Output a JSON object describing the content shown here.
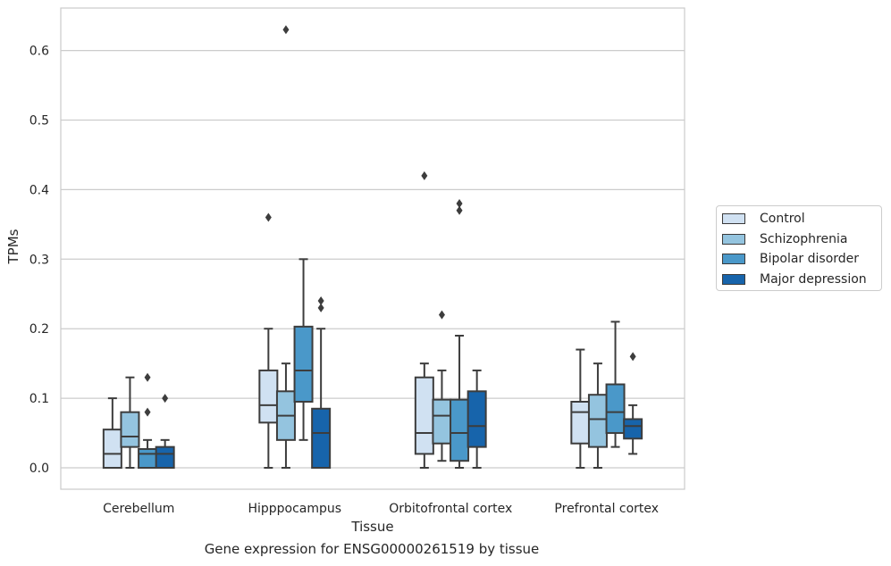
{
  "chart_data": {
    "type": "box",
    "xlabel": "Tissue",
    "ylabel": "TPMs",
    "caption": "Gene expression for ENSG00000261519 by tissue",
    "ylim": [
      -0.03,
      0.66
    ],
    "yticks": [
      "0.0",
      "0.1",
      "0.2",
      "0.3",
      "0.4",
      "0.5",
      "0.6"
    ],
    "grid": true,
    "legend_position": "right",
    "categories": [
      "Cerebellum",
      "Hipppocampus",
      "Orbitofrontal cortex",
      "Prefrontal cortex"
    ],
    "series": [
      {
        "name": "Control",
        "color": "#d0e1f2",
        "boxes": [
          {
            "min": 0.0,
            "q1": 0.0,
            "median": 0.02,
            "q3": 0.055,
            "max": 0.1,
            "outliers": []
          },
          {
            "min": 0.0,
            "q1": 0.065,
            "median": 0.09,
            "q3": 0.14,
            "max": 0.2,
            "outliers": [
              0.36
            ]
          },
          {
            "min": 0.0,
            "q1": 0.02,
            "median": 0.05,
            "q3": 0.13,
            "max": 0.15,
            "outliers": [
              0.42
            ]
          },
          {
            "min": 0.0,
            "q1": 0.035,
            "median": 0.08,
            "q3": 0.095,
            "max": 0.17,
            "outliers": []
          }
        ]
      },
      {
        "name": "Schizophrenia",
        "color": "#94c4df",
        "boxes": [
          {
            "min": 0.0,
            "q1": 0.03,
            "median": 0.045,
            "q3": 0.08,
            "max": 0.13,
            "outliers": []
          },
          {
            "min": 0.0,
            "q1": 0.04,
            "median": 0.075,
            "q3": 0.11,
            "max": 0.15,
            "outliers": [
              0.63
            ]
          },
          {
            "min": 0.01,
            "q1": 0.035,
            "median": 0.075,
            "q3": 0.098,
            "max": 0.14,
            "outliers": [
              0.22
            ]
          },
          {
            "min": 0.0,
            "q1": 0.03,
            "median": 0.07,
            "q3": 0.105,
            "max": 0.15,
            "outliers": []
          }
        ]
      },
      {
        "name": "Bipolar disorder",
        "color": "#4a98c9",
        "boxes": [
          {
            "min": 0.0,
            "q1": 0.0,
            "median": 0.02,
            "q3": 0.027,
            "max": 0.04,
            "outliers": [
              0.13,
              0.08
            ]
          },
          {
            "min": 0.04,
            "q1": 0.095,
            "median": 0.14,
            "q3": 0.203,
            "max": 0.3,
            "outliers": []
          },
          {
            "min": 0.0,
            "q1": 0.01,
            "median": 0.05,
            "q3": 0.098,
            "max": 0.19,
            "outliers": [
              0.38,
              0.37
            ]
          },
          {
            "min": 0.03,
            "q1": 0.05,
            "median": 0.08,
            "q3": 0.12,
            "max": 0.21,
            "outliers": []
          }
        ]
      },
      {
        "name": "Major depression",
        "color": "#1764ab",
        "boxes": [
          {
            "min": 0.0,
            "q1": 0.0,
            "median": 0.02,
            "q3": 0.03,
            "max": 0.04,
            "outliers": [
              0.1
            ]
          },
          {
            "min": 0.0,
            "q1": 0.0,
            "median": 0.05,
            "q3": 0.085,
            "max": 0.2,
            "outliers": [
              0.24,
              0.23
            ]
          },
          {
            "min": 0.0,
            "q1": 0.03,
            "median": 0.06,
            "q3": 0.11,
            "max": 0.14,
            "outliers": []
          },
          {
            "min": 0.02,
            "q1": 0.042,
            "median": 0.06,
            "q3": 0.07,
            "max": 0.09,
            "outliers": [
              0.16
            ]
          }
        ]
      }
    ]
  }
}
